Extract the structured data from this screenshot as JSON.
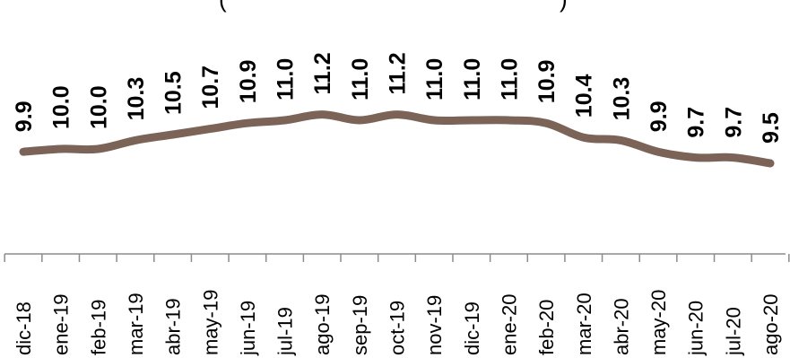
{
  "chart_data": {
    "type": "line",
    "title_fragment_left": "(",
    "title_fragment_right": ")",
    "categories": [
      "dic-18",
      "ene-19",
      "feb-19",
      "mar-19",
      "abr-19",
      "may-19",
      "jun-19",
      "jul-19",
      "ago-19",
      "sep-19",
      "oct-19",
      "nov-19",
      "dic-19",
      "ene-20",
      "feb-20",
      "mar-20",
      "abr-20",
      "may-20",
      "jun-20",
      "jul-20",
      "ago-20"
    ],
    "values": [
      9.9,
      10.0,
      10.0,
      10.3,
      10.5,
      10.7,
      10.9,
      11.0,
      11.2,
      11.0,
      11.2,
      11.0,
      11.0,
      11.0,
      10.9,
      10.4,
      10.3,
      9.9,
      9.7,
      9.7,
      9.5
    ],
    "data_labels": [
      "9.9",
      "10.0",
      "10.0",
      "10.3",
      "10.5",
      "10.7",
      "10.9",
      "11.0",
      "11.2",
      "11.0",
      "11.2",
      "11.0",
      "11.0",
      "11.0",
      "10.9",
      "10.4",
      "10.3",
      "9.9",
      "9.7",
      "9.7",
      "9.5"
    ],
    "grid": false,
    "legend": "none",
    "line_color": "#7b6358",
    "axis_color": "#8c8c8c"
  }
}
